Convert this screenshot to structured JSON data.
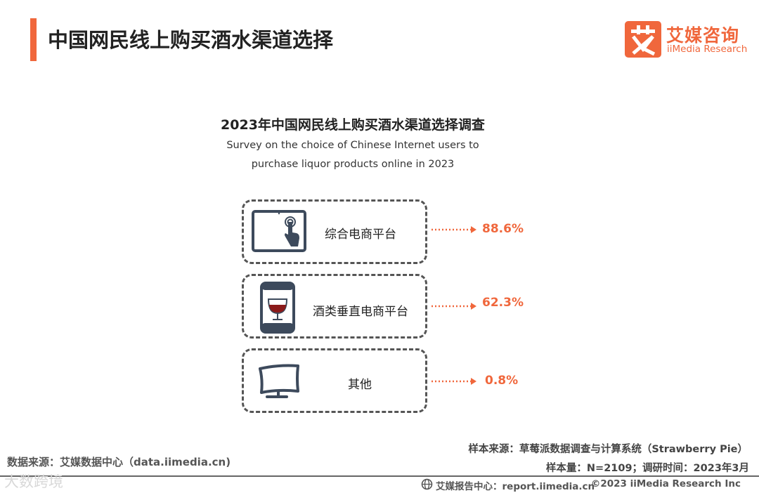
{
  "header": {
    "title": "中国网民线上购买酒水渠道选择",
    "accent_color": "#f0673c"
  },
  "logo": {
    "cn": "艾媒咨询",
    "en": "iiMedia Research",
    "mark_icon": "ai-character-logo"
  },
  "chart_data": {
    "type": "table",
    "title": "2023年中国网民线上购买酒水渠道选择调查",
    "subtitle_lines": [
      "Survey on the choice of Chinese Internet users to",
      "purchase liquor products online in 2023"
    ],
    "categories": [
      "综合电商平台",
      "酒类垂直电商平台",
      "其他"
    ],
    "values": [
      88.6,
      62.3,
      0.8
    ],
    "value_labels": [
      "88.6%",
      "62.3%",
      "0.8%"
    ],
    "icons": [
      "tablet-touch-icon",
      "phone-wine-glass-icon",
      "monitor-icon"
    ],
    "value_color": "#f0673c"
  },
  "footer": {
    "source": "数据来源：艾媒数据中心（data.iimedia.cn)",
    "sample_source": "样本来源：草莓派数据调查与计算系统（Strawberry Pie）",
    "sample_info": "样本量：N=2109；调研时间：2023年3月",
    "report_center": "艾媒报告中心：report.iimedia.cn",
    "copyright": "©2023  iiMedia Research  Inc",
    "watermark": "大数跨境"
  }
}
